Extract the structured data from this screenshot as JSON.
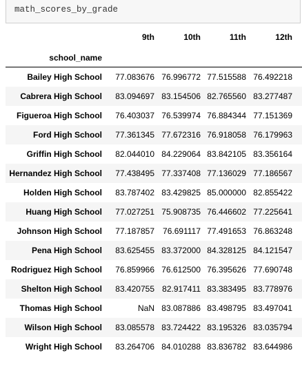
{
  "code": {
    "text": "math_scores_by_grade"
  },
  "table": {
    "index_name": "school_name",
    "columns": [
      "9th",
      "10th",
      "11th",
      "12th"
    ],
    "rows": [
      {
        "name": "Bailey High School",
        "cells": [
          "77.083676",
          "76.996772",
          "77.515588",
          "76.492218"
        ]
      },
      {
        "name": "Cabrera High School",
        "cells": [
          "83.094697",
          "83.154506",
          "82.765560",
          "83.277487"
        ]
      },
      {
        "name": "Figueroa High School",
        "cells": [
          "76.403037",
          "76.539974",
          "76.884344",
          "77.151369"
        ]
      },
      {
        "name": "Ford High School",
        "cells": [
          "77.361345",
          "77.672316",
          "76.918058",
          "76.179963"
        ]
      },
      {
        "name": "Griffin High School",
        "cells": [
          "82.044010",
          "84.229064",
          "83.842105",
          "83.356164"
        ]
      },
      {
        "name": "Hernandez High School",
        "cells": [
          "77.438495",
          "77.337408",
          "77.136029",
          "77.186567"
        ]
      },
      {
        "name": "Holden High School",
        "cells": [
          "83.787402",
          "83.429825",
          "85.000000",
          "82.855422"
        ]
      },
      {
        "name": "Huang High School",
        "cells": [
          "77.027251",
          "75.908735",
          "76.446602",
          "77.225641"
        ]
      },
      {
        "name": "Johnson High School",
        "cells": [
          "77.187857",
          "76.691117",
          "77.491653",
          "76.863248"
        ]
      },
      {
        "name": "Pena High School",
        "cells": [
          "83.625455",
          "83.372000",
          "84.328125",
          "84.121547"
        ]
      },
      {
        "name": "Rodriguez High School",
        "cells": [
          "76.859966",
          "76.612500",
          "76.395626",
          "77.690748"
        ]
      },
      {
        "name": "Shelton High School",
        "cells": [
          "83.420755",
          "82.917411",
          "83.383495",
          "83.778976"
        ]
      },
      {
        "name": "Thomas High School",
        "cells": [
          "NaN",
          "83.087886",
          "83.498795",
          "83.497041"
        ]
      },
      {
        "name": "Wilson High School",
        "cells": [
          "83.085578",
          "83.724422",
          "83.195326",
          "83.035794"
        ]
      },
      {
        "name": "Wright High School",
        "cells": [
          "83.264706",
          "84.010288",
          "83.836782",
          "83.644986"
        ]
      }
    ]
  }
}
